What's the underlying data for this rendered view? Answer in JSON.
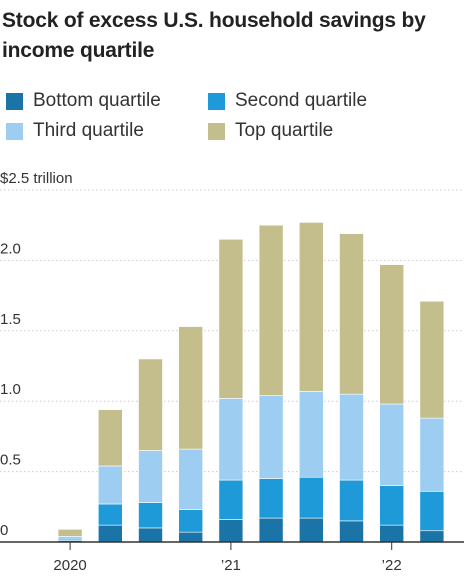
{
  "title": "Stock of excess U.S. household savings by income quartile",
  "chart_data": {
    "type": "bar",
    "stacked": true,
    "title": "Stock of excess U.S. household savings by income quartile",
    "unit_label": "$2.5 trillion",
    "ylim": [
      0,
      2.5
    ],
    "y_ticks": [
      {
        "value": 0,
        "label": "0"
      },
      {
        "value": 0.5,
        "label": "0.5"
      },
      {
        "value": 1.0,
        "label": "1.0"
      },
      {
        "value": 1.5,
        "label": "1.5"
      },
      {
        "value": 2.0,
        "label": "2.0"
      },
      {
        "value": 2.5,
        "label": "$2.5 trillion"
      }
    ],
    "x_ticks": [
      {
        "at": 0.5,
        "label": "2020"
      },
      {
        "at": 4.5,
        "label": "’21"
      },
      {
        "at": 8.5,
        "label": "’22"
      }
    ],
    "grid": true,
    "legend_position": "top",
    "categories": [
      "",
      "",
      "",
      "",
      "",
      "",
      "",
      "",
      "",
      ""
    ],
    "series": [
      {
        "name": "Bottom quartile",
        "color": "#1a74a8",
        "values": [
          0.01,
          0.12,
          0.1,
          0.07,
          0.16,
          0.17,
          0.17,
          0.15,
          0.12,
          0.08
        ]
      },
      {
        "name": "Second quartile",
        "color": "#1e9ad8",
        "values": [
          0.01,
          0.15,
          0.18,
          0.16,
          0.28,
          0.28,
          0.29,
          0.29,
          0.28,
          0.28
        ]
      },
      {
        "name": "Third quartile",
        "color": "#9dcdf0",
        "values": [
          0.02,
          0.27,
          0.37,
          0.43,
          0.58,
          0.59,
          0.61,
          0.61,
          0.58,
          0.52
        ]
      },
      {
        "name": "Top quartile",
        "color": "#c4bd8c",
        "values": [
          0.05,
          0.4,
          0.65,
          0.87,
          1.13,
          1.21,
          1.2,
          1.14,
          0.99,
          0.83
        ]
      }
    ]
  },
  "colors": {
    "axis": "#333333",
    "grid": "#cccccc",
    "text": "#333333"
  }
}
